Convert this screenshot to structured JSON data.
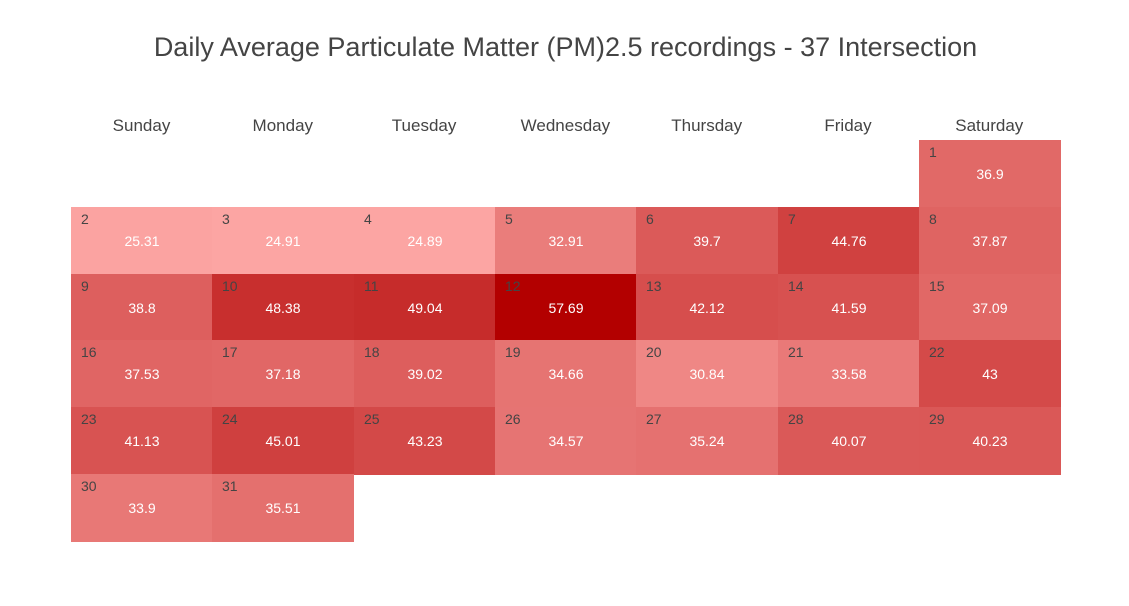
{
  "chart_data": {
    "type": "heatmap",
    "subtype": "calendar",
    "title": "Daily Average Particulate Matter (PM)2.5 recordings - 37 Intersection",
    "weekdays": [
      "Sunday",
      "Monday",
      "Tuesday",
      "Wednesday",
      "Thursday",
      "Friday",
      "Saturday"
    ],
    "first_weekday_index": 6,
    "color_scale": {
      "min": 24.89,
      "max": 57.69,
      "low_color": "#fca5a3",
      "high_color": "#b30000"
    },
    "days": [
      {
        "day": "1",
        "value": "36.9"
      },
      {
        "day": "2",
        "value": "25.31"
      },
      {
        "day": "3",
        "value": "24.91"
      },
      {
        "day": "4",
        "value": "24.89"
      },
      {
        "day": "5",
        "value": "32.91"
      },
      {
        "day": "6",
        "value": "39.7"
      },
      {
        "day": "7",
        "value": "44.76"
      },
      {
        "day": "8",
        "value": "37.87"
      },
      {
        "day": "9",
        "value": "38.8"
      },
      {
        "day": "10",
        "value": "48.38"
      },
      {
        "day": "11",
        "value": "49.04"
      },
      {
        "day": "12",
        "value": "57.69"
      },
      {
        "day": "13",
        "value": "42.12"
      },
      {
        "day": "14",
        "value": "41.59"
      },
      {
        "day": "15",
        "value": "37.09"
      },
      {
        "day": "16",
        "value": "37.53"
      },
      {
        "day": "17",
        "value": "37.18"
      },
      {
        "day": "18",
        "value": "39.02"
      },
      {
        "day": "19",
        "value": "34.66"
      },
      {
        "day": "20",
        "value": "30.84"
      },
      {
        "day": "21",
        "value": "33.58"
      },
      {
        "day": "22",
        "value": "43"
      },
      {
        "day": "23",
        "value": "41.13"
      },
      {
        "day": "24",
        "value": "45.01"
      },
      {
        "day": "25",
        "value": "43.23"
      },
      {
        "day": "26",
        "value": "34.57"
      },
      {
        "day": "27",
        "value": "35.24"
      },
      {
        "day": "28",
        "value": "40.07"
      },
      {
        "day": "29",
        "value": "40.23"
      },
      {
        "day": "30",
        "value": "33.9"
      },
      {
        "day": "31",
        "value": "35.51"
      }
    ]
  }
}
